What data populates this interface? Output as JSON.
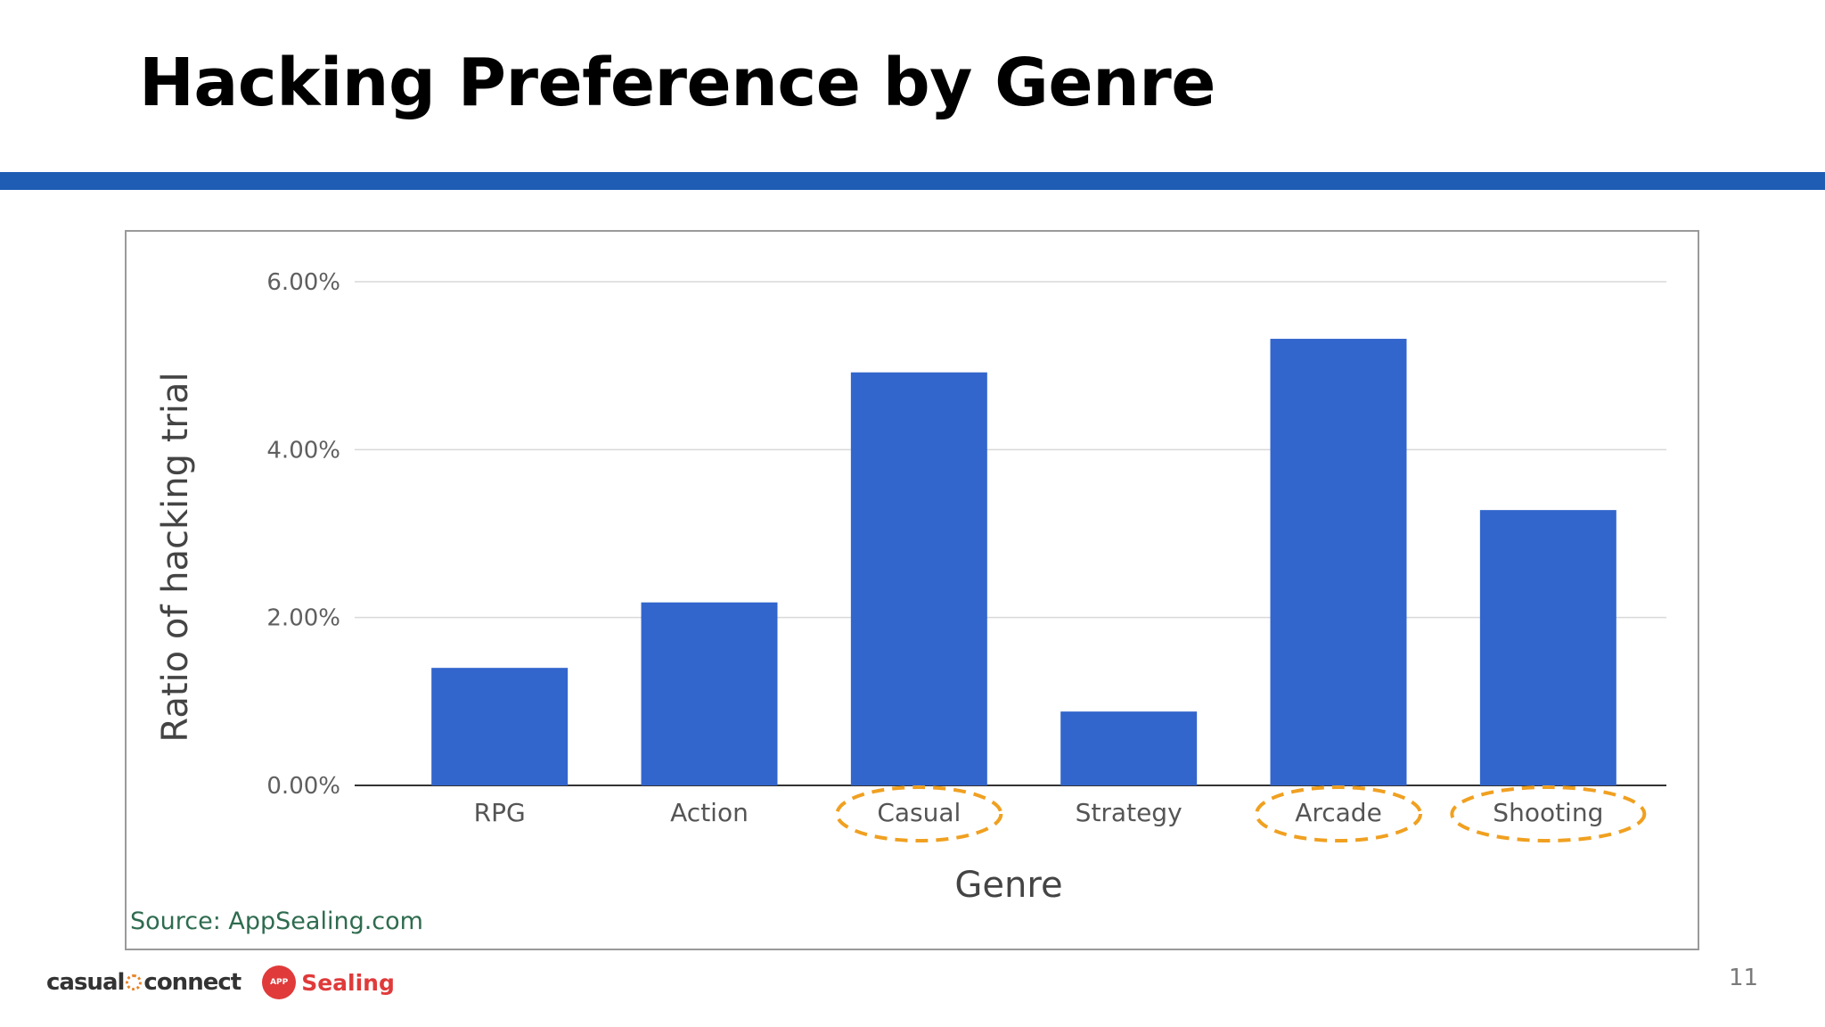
{
  "slide": {
    "title": "Hacking Preference by Genre",
    "source": "Source: AppSealing.com",
    "page_number": "11",
    "accent_color": "#1f5db4"
  },
  "footer": {
    "casual_connect_left": "casual",
    "casual_connect_right": "connect",
    "appsealing_badge": "APP",
    "appsealing_text": "Sealing"
  },
  "chart_data": {
    "type": "bar",
    "categories": [
      "RPG",
      "Action",
      "Casual",
      "Strategy",
      "Arcade",
      "Shooting"
    ],
    "values": [
      1.4,
      2.18,
      4.92,
      0.88,
      5.32,
      3.28
    ],
    "highlighted_categories": [
      "Casual",
      "Arcade",
      "Shooting"
    ],
    "highlight_color": "#f0a020",
    "bar_color": "#3366cc",
    "ylabel": "Ratio of hacking trial",
    "xlabel": "Genre",
    "ylim": [
      0,
      6
    ],
    "yticks": [
      0,
      2,
      4,
      6
    ],
    "ytick_labels": [
      "0.00%",
      "2.00%",
      "4.00%",
      "6.00%"
    ],
    "grid": true
  }
}
